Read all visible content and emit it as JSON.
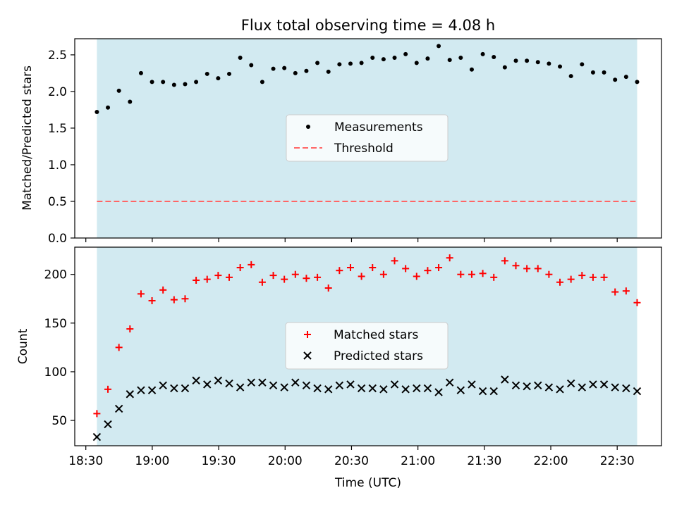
{
  "title": "Flux total observing time = 4.08 h",
  "colors": {
    "shade": "#add8e6",
    "measurements": "#000000",
    "threshold": "#ff6666",
    "matched": "#ff0000",
    "predicted": "#000000"
  },
  "chart_data": [
    {
      "type": "scatter",
      "ylabel": "Matched/Predicted stars",
      "xlabel": "",
      "ylim": [
        0,
        2.72
      ],
      "yticks": [
        "0.0",
        "0.5",
        "1.0",
        "1.5",
        "2.0",
        "2.5"
      ],
      "threshold": 0.5,
      "legend": {
        "placement": "center",
        "entries": [
          "Measurements",
          "Threshold"
        ]
      },
      "series": [
        {
          "name": "Measurements",
          "marker": "dot",
          "values": [
            1.72,
            1.78,
            2.01,
            1.86,
            2.25,
            2.13,
            2.13,
            2.09,
            2.1,
            2.13,
            2.24,
            2.18,
            2.24,
            2.46,
            2.36,
            2.13,
            2.31,
            2.32,
            2.25,
            2.28,
            2.39,
            2.27,
            2.37,
            2.38,
            2.39,
            2.46,
            2.44,
            2.46,
            2.51,
            2.39,
            2.45,
            2.62,
            2.43,
            2.46,
            2.3,
            2.51,
            2.47,
            2.33,
            2.42,
            2.42,
            2.4,
            2.38,
            2.34,
            2.21,
            2.37,
            2.26,
            2.26,
            2.16,
            2.2,
            2.13
          ]
        }
      ]
    },
    {
      "type": "scatter",
      "ylabel": "Count",
      "xlabel": "Time (UTC)",
      "ylim": [
        24,
        228
      ],
      "yticks": [
        "50",
        "100",
        "150",
        "200"
      ],
      "xticks": [
        "18:30",
        "19:00",
        "19:30",
        "20:00",
        "20:30",
        "21:00",
        "21:30",
        "22:00",
        "22:30"
      ],
      "legend": {
        "placement": "center",
        "entries": [
          "Matched stars",
          "Predicted stars"
        ]
      },
      "series": [
        {
          "name": "Matched stars",
          "marker": "plus",
          "values": [
            57,
            82,
            125,
            144,
            180,
            173,
            184,
            174,
            175,
            194,
            195,
            199,
            197,
            207,
            210,
            192,
            199,
            195,
            200,
            196,
            197,
            186,
            204,
            207,
            198,
            207,
            200,
            214,
            206,
            198,
            204,
            207,
            217,
            200,
            200,
            201,
            197,
            214,
            209,
            206,
            206,
            200,
            192,
            195,
            199,
            197,
            197,
            182,
            183,
            171
          ]
        },
        {
          "name": "Predicted stars",
          "marker": "x",
          "values": [
            33,
            46,
            62,
            77,
            81,
            81,
            86,
            83,
            83,
            91,
            87,
            91,
            88,
            84,
            89,
            89,
            86,
            84,
            89,
            86,
            83,
            82,
            86,
            87,
            83,
            83,
            82,
            87,
            82,
            83,
            83,
            79,
            89,
            81,
            87,
            80,
            80,
            92,
            86,
            85,
            86,
            84,
            82,
            88,
            84,
            87,
            87,
            84,
            83,
            80
          ]
        }
      ]
    }
  ],
  "time_axis": {
    "start": "18:35",
    "end": "22:39",
    "min": "18:25",
    "max": "22:50"
  }
}
